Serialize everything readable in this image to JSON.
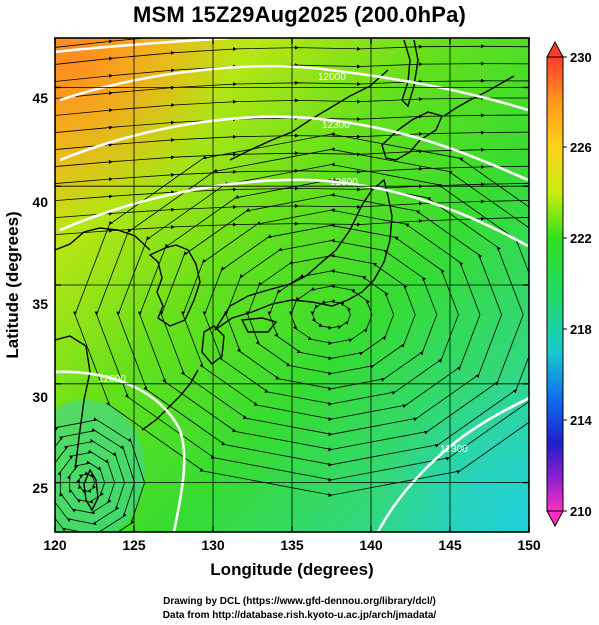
{
  "title": "MSM 15Z29Aug2025 (200.0hPa)",
  "axes": {
    "x_title": "Longitude (degrees)",
    "y_title": "Latitude  (degrees)",
    "x_ticks": [
      "120",
      "125",
      "130",
      "135",
      "140",
      "145",
      "150"
    ],
    "y_ticks": [
      "25",
      "30",
      "35",
      "40",
      "45"
    ]
  },
  "colorbar": {
    "ticks": [
      "230",
      "226",
      "222",
      "218",
      "214",
      "210"
    ],
    "colors": [
      "#ff3b2a",
      "#ff9a1a",
      "#ffd21a",
      "#c8ec10",
      "#30e020",
      "#20d878",
      "#18c8d0",
      "#1070f0",
      "#2020c8",
      "#9020d0",
      "#ff30c0"
    ]
  },
  "contour_labels": [
    "12000",
    "12300",
    "12600",
    "12600",
    "12300"
  ],
  "credits": {
    "line1": "Drawing by DCL (https://www.gfd-dennou.org/library/dcl/)",
    "line2": "Data from http://database.rish.kyoto-u.ac.jp/arch/jmadata/"
  },
  "chart_data": {
    "type": "map",
    "variable": "temperature-colored wind streamlines with geopotential height contours",
    "xlim": [
      120,
      150
    ],
    "ylim": [
      22.5,
      47.5
    ],
    "color_range": [
      210,
      230
    ],
    "dominant_value_range": [
      220,
      228
    ],
    "warm_region": "northwest (near 120E, 47N)",
    "cool_region": "southeast (near 150E, 23N)",
    "anticyclone_center": [
      137.5,
      33.5
    ],
    "grid": true
  }
}
